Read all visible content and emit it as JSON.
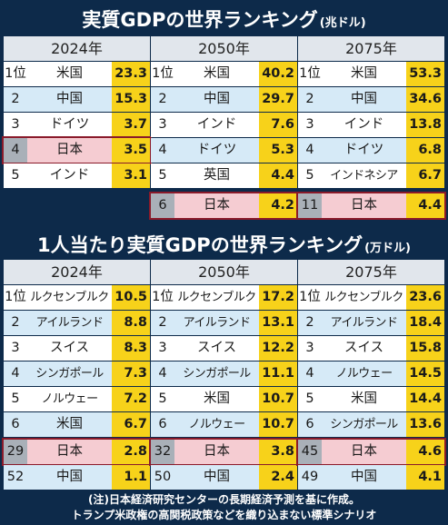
{
  "chart_data": [
    {
      "type": "table",
      "title": "実質GDPの世界ランキング",
      "unit": "(兆ドル)",
      "tables": [
        {
          "year": "2024年",
          "rows": [
            {
              "rank": "1位",
              "country": "米国",
              "value": "23.3"
            },
            {
              "rank": "2",
              "country": "中国",
              "value": "15.3"
            },
            {
              "rank": "3",
              "country": "ドイツ",
              "value": "3.7"
            },
            {
              "rank": "4",
              "country": "日本",
              "value": "3.5",
              "japan": true
            },
            {
              "rank": "5",
              "country": "インド",
              "value": "3.1"
            }
          ],
          "extra": []
        },
        {
          "year": "2050年",
          "rows": [
            {
              "rank": "1位",
              "country": "米国",
              "value": "40.2"
            },
            {
              "rank": "2",
              "country": "中国",
              "value": "29.7"
            },
            {
              "rank": "3",
              "country": "インド",
              "value": "7.6"
            },
            {
              "rank": "4",
              "country": "ドイツ",
              "value": "5.3"
            },
            {
              "rank": "5",
              "country": "英国",
              "value": "4.4"
            }
          ],
          "extra": [
            {
              "rank": "6",
              "country": "日本",
              "value": "4.2",
              "japan": true
            }
          ]
        },
        {
          "year": "2075年",
          "rows": [
            {
              "rank": "1位",
              "country": "米国",
              "value": "53.3"
            },
            {
              "rank": "2",
              "country": "中国",
              "value": "34.6"
            },
            {
              "rank": "3",
              "country": "インド",
              "value": "13.8"
            },
            {
              "rank": "4",
              "country": "ドイツ",
              "value": "6.8"
            },
            {
              "rank": "5",
              "country": "インドネシア",
              "value": "6.7"
            }
          ],
          "extra": [
            {
              "rank": "11",
              "country": "日本",
              "value": "4.4",
              "japan": true
            }
          ]
        }
      ]
    },
    {
      "type": "table",
      "title": "1人当たり実質GDPの世界ランキング",
      "unit": "(万ドル)",
      "tables": [
        {
          "year": "2024年",
          "rows": [
            {
              "rank": "1位",
              "country": "ルクセンブルク",
              "value": "10.5"
            },
            {
              "rank": "2",
              "country": "アイルランド",
              "value": "8.8"
            },
            {
              "rank": "3",
              "country": "スイス",
              "value": "8.3"
            },
            {
              "rank": "4",
              "country": "シンガポール",
              "value": "7.3"
            },
            {
              "rank": "5",
              "country": "ノルウェー",
              "value": "7.2"
            },
            {
              "rank": "6",
              "country": "米国",
              "value": "6.7"
            }
          ],
          "extra": [
            {
              "rank": "29",
              "country": "日本",
              "value": "2.8",
              "japan": true
            },
            {
              "rank": "52",
              "country": "中国",
              "value": "1.1"
            }
          ]
        },
        {
          "year": "2050年",
          "rows": [
            {
              "rank": "1位",
              "country": "ルクセンブルク",
              "value": "17.2"
            },
            {
              "rank": "2",
              "country": "アイルランド",
              "value": "13.1"
            },
            {
              "rank": "3",
              "country": "スイス",
              "value": "12.2"
            },
            {
              "rank": "4",
              "country": "シンガポール",
              "value": "11.1"
            },
            {
              "rank": "5",
              "country": "米国",
              "value": "10.7"
            },
            {
              "rank": "6",
              "country": "ノルウェー",
              "value": "10.7"
            }
          ],
          "extra": [
            {
              "rank": "32",
              "country": "日本",
              "value": "3.8",
              "japan": true
            },
            {
              "rank": "50",
              "country": "中国",
              "value": "2.4"
            }
          ]
        },
        {
          "year": "2075年",
          "rows": [
            {
              "rank": "1位",
              "country": "ルクセンブルク",
              "value": "23.6"
            },
            {
              "rank": "2",
              "country": "アイルランド",
              "value": "18.4"
            },
            {
              "rank": "3",
              "country": "スイス",
              "value": "15.8"
            },
            {
              "rank": "4",
              "country": "ノルウェー",
              "value": "14.5"
            },
            {
              "rank": "5",
              "country": "米国",
              "value": "14.4"
            },
            {
              "rank": "6",
              "country": "シンガポール",
              "value": "13.6"
            }
          ],
          "extra": [
            {
              "rank": "45",
              "country": "日本",
              "value": "4.6",
              "japan": true
            },
            {
              "rank": "49",
              "country": "中国",
              "value": "4.1"
            }
          ]
        }
      ]
    }
  ],
  "note": {
    "line1": "(注)日本経済研究センターの長期経済予測を基に作成。",
    "line2": "トランプ米政権の高関税政策などを織り込まない標準シナリオ"
  },
  "colors": {
    "background": "#0d2a4a",
    "value_cell": "#f7d21a",
    "japan_row": "#f5ccd2",
    "japan_border": "#8a1a2a",
    "row_alt": "#d6eaf7"
  }
}
